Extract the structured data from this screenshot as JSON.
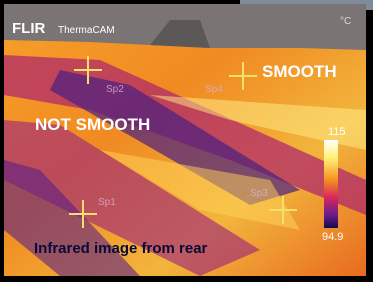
{
  "image": {
    "brand": "FLIR",
    "model": "ThermaCAM",
    "unit": "°C",
    "scale_max": "115",
    "scale_min": "94.9",
    "labels": [
      "SMOOTH",
      "NOT SMOOTH"
    ],
    "caption": "Infrared image from rear",
    "spots": [
      "Sp1",
      "Sp2",
      "Sp3",
      "Sp4"
    ]
  }
}
